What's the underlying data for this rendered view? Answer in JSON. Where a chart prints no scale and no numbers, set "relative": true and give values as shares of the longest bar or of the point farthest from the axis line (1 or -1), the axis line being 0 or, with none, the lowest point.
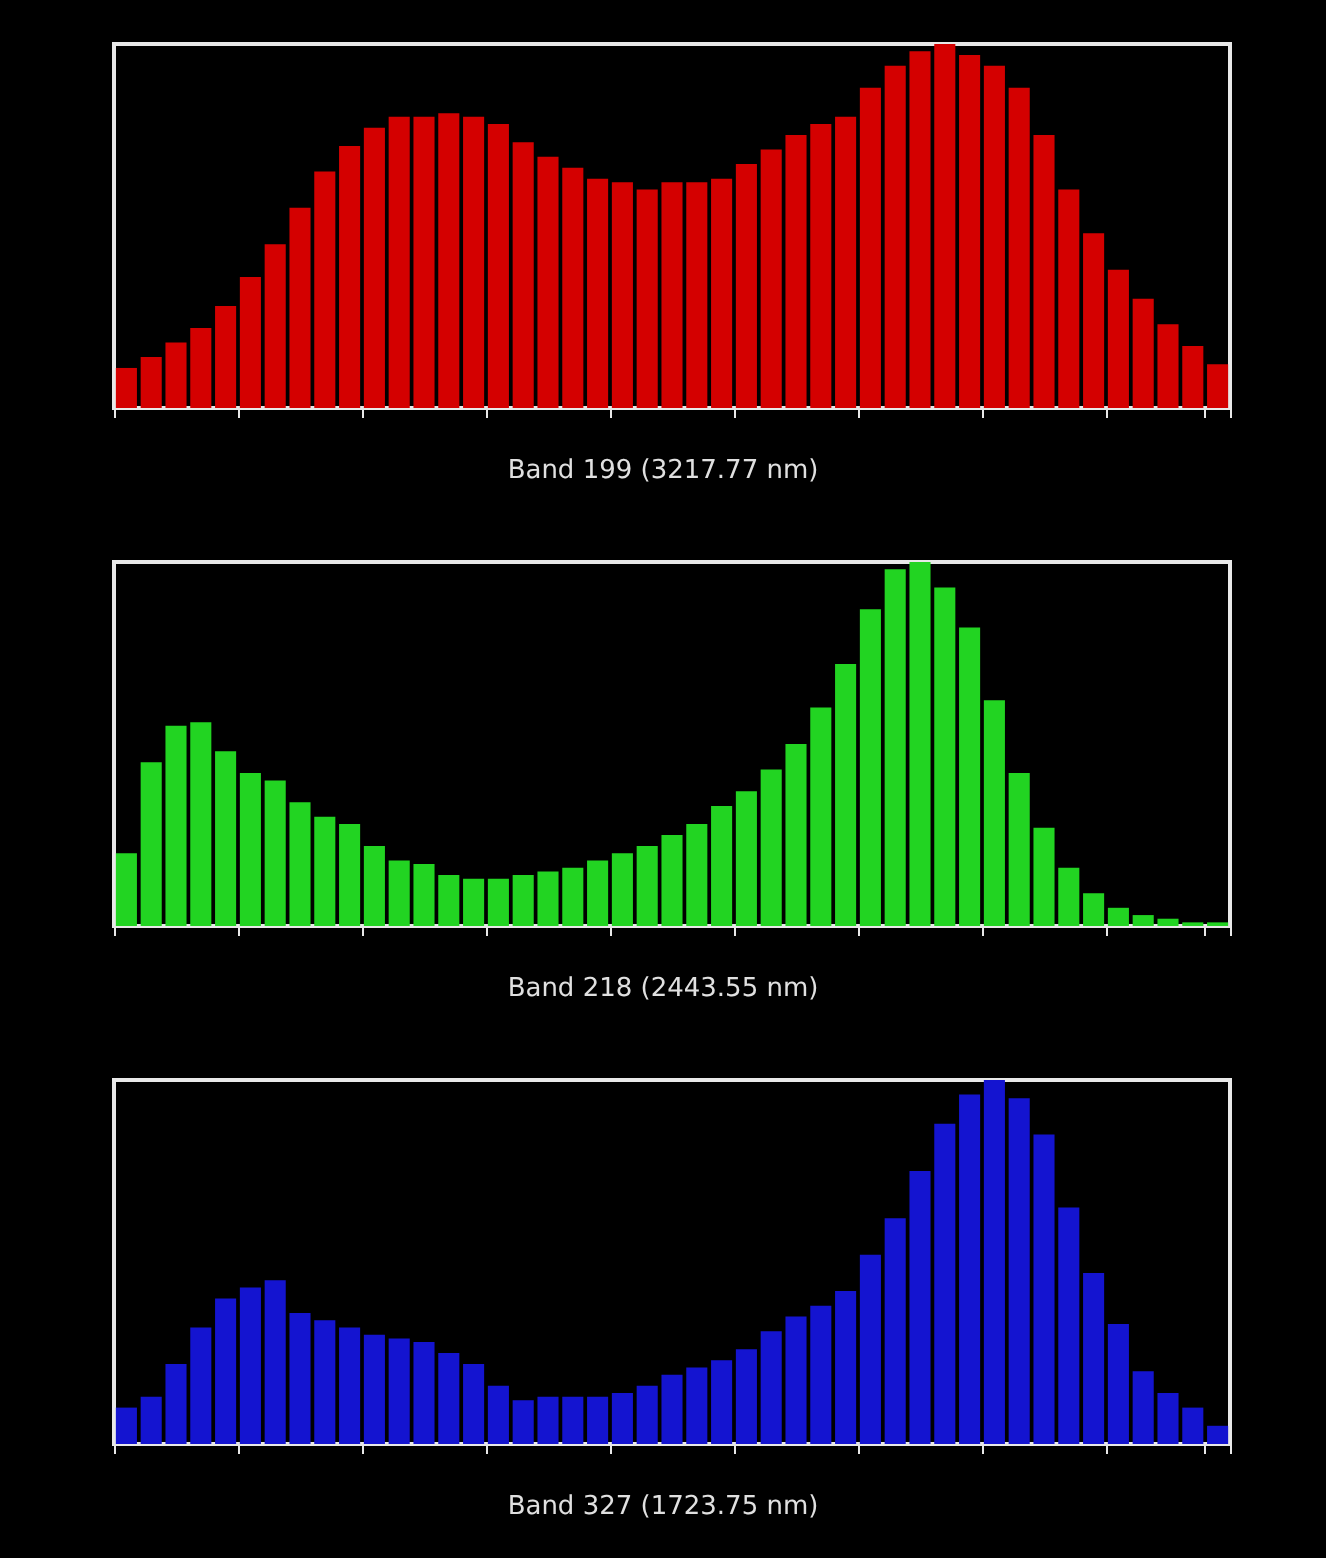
{
  "chart_data": [
    {
      "type": "bar",
      "title": "Band 199 (3217.77 nm)",
      "relative": true,
      "categories": [
        null,
        null,
        null,
        null,
        null,
        null,
        null,
        null,
        null,
        null,
        null,
        null,
        null,
        null,
        null,
        null,
        null,
        null,
        null,
        null,
        null,
        null,
        null,
        null,
        null,
        null,
        null,
        null,
        null,
        null,
        null,
        null,
        null,
        null,
        null,
        null,
        null,
        null,
        null,
        null,
        null,
        null,
        null,
        null,
        null
      ],
      "series": [
        {
          "color": "#d40000",
          "values": [
            0.11,
            0.14,
            0.18,
            0.22,
            0.28,
            0.36,
            0.45,
            0.55,
            0.65,
            0.72,
            0.77,
            0.8,
            0.8,
            0.81,
            0.8,
            0.78,
            0.73,
            0.69,
            0.66,
            0.63,
            0.62,
            0.6,
            0.62,
            0.62,
            0.63,
            0.67,
            0.71,
            0.75,
            0.78,
            0.8,
            0.88,
            0.94,
            0.98,
            1,
            0.97,
            0.94,
            0.88,
            0.75,
            0.6,
            0.48,
            0.38,
            0.3,
            0.23,
            0.17,
            0.12
          ]
        }
      ]
    },
    {
      "type": "bar",
      "title": "Band 218 (2443.55 nm)",
      "relative": true,
      "categories": [
        null,
        null,
        null,
        null,
        null,
        null,
        null,
        null,
        null,
        null,
        null,
        null,
        null,
        null,
        null,
        null,
        null,
        null,
        null,
        null,
        null,
        null,
        null,
        null,
        null,
        null,
        null,
        null,
        null,
        null,
        null,
        null,
        null,
        null,
        null,
        null,
        null,
        null,
        null,
        null,
        null,
        null,
        null,
        null,
        null
      ],
      "series": [
        {
          "color": "#22d422",
          "values": [
            0.2,
            0.45,
            0.55,
            0.56,
            0.48,
            0.42,
            0.4,
            0.34,
            0.3,
            0.28,
            0.22,
            0.18,
            0.17,
            0.14,
            0.13,
            0.13,
            0.14,
            0.15,
            0.16,
            0.18,
            0.2,
            0.22,
            0.25,
            0.28,
            0.33,
            0.37,
            0.43,
            0.5,
            0.6,
            0.72,
            0.87,
            0.98,
            1,
            0.93,
            0.82,
            0.62,
            0.42,
            0.27,
            0.16,
            0.09,
            0.05,
            0.03,
            0.02,
            0.01,
            0.01
          ]
        }
      ]
    },
    {
      "type": "bar",
      "title": "Band 327 (1723.75 nm)",
      "relative": true,
      "categories": [
        null,
        null,
        null,
        null,
        null,
        null,
        null,
        null,
        null,
        null,
        null,
        null,
        null,
        null,
        null,
        null,
        null,
        null,
        null,
        null,
        null,
        null,
        null,
        null,
        null,
        null,
        null,
        null,
        null,
        null,
        null,
        null,
        null,
        null,
        null,
        null,
        null,
        null,
        null,
        null,
        null,
        null,
        null,
        null,
        null
      ],
      "series": [
        {
          "color": "#1414d0",
          "values": [
            0.1,
            0.13,
            0.22,
            0.32,
            0.4,
            0.43,
            0.45,
            0.36,
            0.34,
            0.32,
            0.3,
            0.29,
            0.28,
            0.25,
            0.22,
            0.16,
            0.12,
            0.13,
            0.13,
            0.13,
            0.14,
            0.16,
            0.19,
            0.21,
            0.23,
            0.26,
            0.31,
            0.35,
            0.38,
            0.42,
            0.52,
            0.62,
            0.75,
            0.88,
            0.96,
            1,
            0.95,
            0.85,
            0.65,
            0.47,
            0.33,
            0.2,
            0.14,
            0.1,
            0.05
          ]
        }
      ]
    }
  ]
}
